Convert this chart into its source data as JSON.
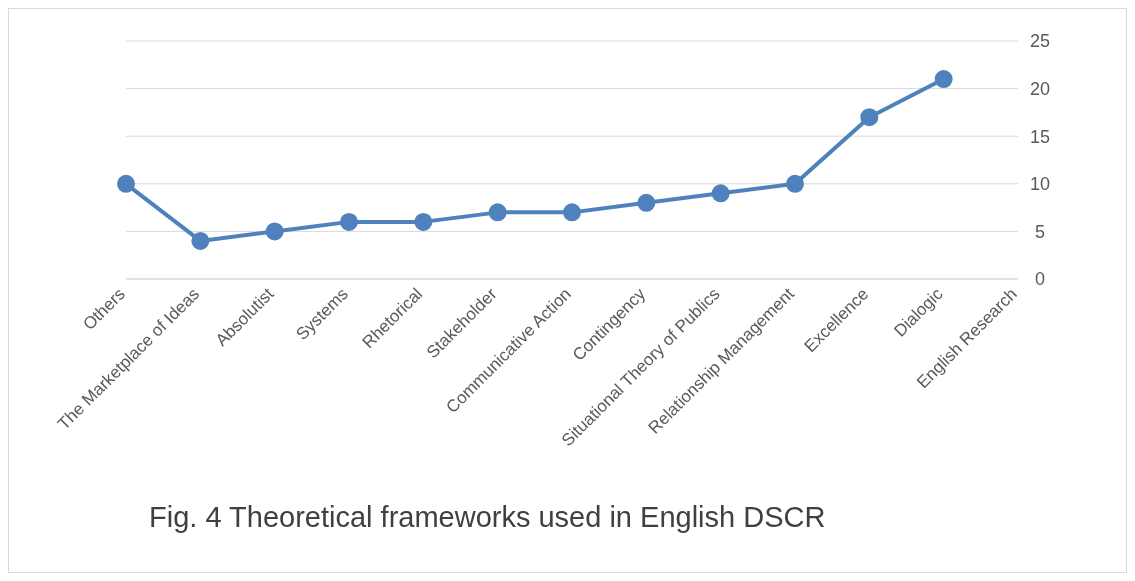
{
  "chart_data": {
    "type": "line",
    "title": "Fig. 4 Theoretical frameworks used in English DSCR",
    "categories": [
      "Others",
      "The Marketplace of Ideas",
      "Absolutist",
      "Systems",
      "Rhetorical",
      "Stakeholder",
      "Communicative Action",
      "Contingency",
      "Situational Theory of Publics",
      "Relationship Management",
      "Excellence",
      "Dialogic",
      "English Research"
    ],
    "series": [
      {
        "color": "#4f81bd",
        "values": [
          10,
          4,
          5,
          6,
          6,
          7,
          7,
          8,
          9,
          10,
          17,
          21,
          null
        ]
      }
    ],
    "ylim": [
      0,
      25
    ],
    "yticks": [
      0,
      5,
      10,
      15,
      20,
      25
    ],
    "grid": "y",
    "marker": "circle",
    "line_style": "solid"
  }
}
